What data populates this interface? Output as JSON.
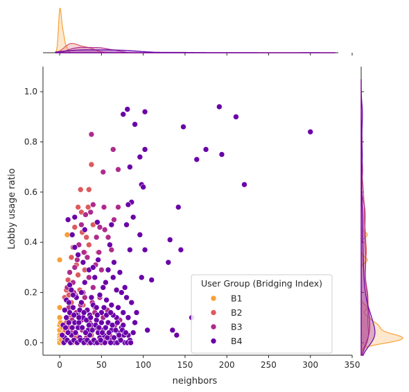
{
  "chart_data": {
    "type": "scatter",
    "title": "",
    "xlabel": "neighbors",
    "ylabel": "Lobby usage ratio",
    "xlim": [
      -20,
      350
    ],
    "ylim": [
      -0.05,
      1.1
    ],
    "xticks": [
      0,
      50,
      100,
      150,
      200,
      250,
      300,
      350
    ],
    "yticks": [
      0.0,
      0.2,
      0.4,
      0.6,
      0.8,
      1.0
    ],
    "grid": false,
    "legend": {
      "title": "User Group (Bridging Index)",
      "placement": "lower-right",
      "entries": [
        "B1",
        "B2",
        "B3",
        "B4"
      ]
    },
    "marginals": {
      "top": "kde of neighbors by group",
      "right": "kde of Lobby usage ratio by group"
    },
    "series": [
      {
        "name": "B1",
        "color": "#f7a137",
        "points": [
          [
            0,
            0.33
          ],
          [
            0,
            0.14
          ],
          [
            0,
            0.1
          ],
          [
            0,
            0.07
          ],
          [
            0,
            0.05
          ],
          [
            0,
            0.03
          ],
          [
            0,
            0.02
          ],
          [
            0,
            0.01
          ],
          [
            0,
            0.0
          ],
          [
            2,
            0.02
          ],
          [
            3,
            0.06
          ],
          [
            4,
            0.0
          ],
          [
            5,
            0.04
          ],
          [
            9,
            0.43
          ],
          [
            2,
            0.01
          ],
          [
            6,
            0.02
          ],
          [
            1,
            0.08
          ],
          [
            4,
            0.03
          ]
        ]
      },
      {
        "name": "B2",
        "color": "#dc5a5e",
        "points": [
          [
            12,
            0.21
          ],
          [
            14,
            0.16
          ],
          [
            18,
            0.46
          ],
          [
            22,
            0.54
          ],
          [
            25,
            0.61
          ],
          [
            38,
            0.71
          ],
          [
            35,
            0.61
          ],
          [
            34,
            0.54
          ],
          [
            32,
            0.42
          ],
          [
            30,
            0.36
          ],
          [
            8,
            0.21
          ],
          [
            10,
            0.13
          ],
          [
            12,
            0.1
          ],
          [
            16,
            0.06
          ],
          [
            20,
            0.03
          ],
          [
            6,
            0.18
          ],
          [
            10,
            0.25
          ],
          [
            14,
            0.34
          ],
          [
            26,
            0.52
          ],
          [
            40,
            0.47
          ],
          [
            22,
            0.27
          ],
          [
            28,
            0.15
          ],
          [
            18,
            0.02
          ],
          [
            15,
            0.0
          ],
          [
            12,
            0.09
          ],
          [
            9,
            0.01
          ],
          [
            7,
            0.05
          ],
          [
            24,
            0.21
          ],
          [
            30,
            0.29
          ],
          [
            20,
            0.31
          ],
          [
            16,
            0.38
          ],
          [
            27,
            0.44
          ],
          [
            35,
            0.39
          ],
          [
            46,
            0.36
          ],
          [
            42,
            0.14
          ],
          [
            38,
            0.03
          ],
          [
            11,
            0.19
          ],
          [
            19,
            0.12
          ],
          [
            8,
            0.08
          ],
          [
            13,
            0.0
          ]
        ]
      },
      {
        "name": "B3",
        "color": "#ae2b8d",
        "points": [
          [
            38,
            0.83
          ],
          [
            52,
            0.68
          ],
          [
            64,
            0.77
          ],
          [
            70,
            0.69
          ],
          [
            53,
            0.54
          ],
          [
            40,
            0.55
          ],
          [
            48,
            0.46
          ],
          [
            44,
            0.42
          ],
          [
            54,
            0.45
          ],
          [
            65,
            0.49
          ],
          [
            70,
            0.54
          ],
          [
            58,
            0.42
          ],
          [
            62,
            0.37
          ],
          [
            47,
            0.36
          ],
          [
            50,
            0.29
          ],
          [
            35,
            0.26
          ],
          [
            40,
            0.22
          ],
          [
            30,
            0.18
          ],
          [
            25,
            0.15
          ],
          [
            20,
            0.12
          ],
          [
            15,
            0.09
          ],
          [
            10,
            0.06
          ],
          [
            28,
            0.2
          ],
          [
            33,
            0.34
          ],
          [
            18,
            0.3
          ],
          [
            23,
            0.39
          ],
          [
            26,
            0.47
          ],
          [
            31,
            0.51
          ],
          [
            37,
            0.52
          ],
          [
            12,
            0.28
          ],
          [
            16,
            0.24
          ],
          [
            22,
            0.11
          ],
          [
            27,
            0.05
          ],
          [
            32,
            0.02
          ],
          [
            36,
            0.08
          ],
          [
            42,
            0.12
          ],
          [
            46,
            0.04
          ],
          [
            50,
            0.0
          ],
          [
            55,
            0.02
          ],
          [
            60,
            0.03
          ],
          [
            43,
            0.31
          ],
          [
            19,
            0.19
          ],
          [
            14,
            0.04
          ],
          [
            24,
            0.01
          ],
          [
            34,
            0.0
          ],
          [
            29,
            0.36
          ],
          [
            21,
            0.33
          ],
          [
            17,
            0.2
          ],
          [
            39,
            0.16
          ],
          [
            44,
            0.06
          ],
          [
            48,
            0.18
          ],
          [
            52,
            0.1
          ],
          [
            57,
            0.13
          ],
          [
            66,
            0.07
          ],
          [
            72,
            0.09
          ],
          [
            11,
            0.14
          ],
          [
            9,
            0.22
          ],
          [
            26,
            0.09
          ]
        ]
      },
      {
        "name": "B4",
        "color": "#6a00a8",
        "points": [
          [
            81,
            0.93
          ],
          [
            102,
            0.92
          ],
          [
            76,
            0.91
          ],
          [
            191,
            0.94
          ],
          [
            211,
            0.9
          ],
          [
            300,
            0.84
          ],
          [
            148,
            0.86
          ],
          [
            90,
            0.87
          ],
          [
            102,
            0.77
          ],
          [
            175,
            0.77
          ],
          [
            164,
            0.73
          ],
          [
            194,
            0.75
          ],
          [
            96,
            0.74
          ],
          [
            84,
            0.7
          ],
          [
            98,
            0.63
          ],
          [
            100,
            0.62
          ],
          [
            221,
            0.63
          ],
          [
            142,
            0.54
          ],
          [
            86,
            0.56
          ],
          [
            82,
            0.55
          ],
          [
            88,
            0.5
          ],
          [
            80,
            0.47
          ],
          [
            84,
            0.37
          ],
          [
            96,
            0.43
          ],
          [
            102,
            0.37
          ],
          [
            132,
            0.41
          ],
          [
            145,
            0.37
          ],
          [
            130,
            0.32
          ],
          [
            110,
            0.25
          ],
          [
            98,
            0.26
          ],
          [
            60,
            0.39
          ],
          [
            65,
            0.32
          ],
          [
            72,
            0.28
          ],
          [
            78,
            0.22
          ],
          [
            55,
            0.24
          ],
          [
            48,
            0.19
          ],
          [
            62,
            0.15
          ],
          [
            68,
            0.1
          ],
          [
            74,
            0.06
          ],
          [
            58,
            0.08
          ],
          [
            50,
            0.12
          ],
          [
            44,
            0.09
          ],
          [
            38,
            0.07
          ],
          [
            33,
            0.13
          ],
          [
            28,
            0.1
          ],
          [
            22,
            0.06
          ],
          [
            18,
            0.08
          ],
          [
            14,
            0.03
          ],
          [
            10,
            0.04
          ],
          [
            6,
            0.02
          ],
          [
            4,
            0.07
          ],
          [
            8,
            0.1
          ],
          [
            12,
            0.12
          ],
          [
            16,
            0.14
          ],
          [
            20,
            0.11
          ],
          [
            24,
            0.02
          ],
          [
            30,
            0.01
          ],
          [
            36,
            0.03
          ],
          [
            42,
            0.0
          ],
          [
            48,
            0.02
          ],
          [
            54,
            0.0
          ],
          [
            60,
            0.01
          ],
          [
            66,
            0.0
          ],
          [
            72,
            0.02
          ],
          [
            78,
            0.0
          ],
          [
            84,
            0.01
          ],
          [
            105,
            0.05
          ],
          [
            135,
            0.05
          ],
          [
            140,
            0.03
          ],
          [
            158,
            0.1
          ],
          [
            90,
            0.08
          ],
          [
            86,
            0.16
          ],
          [
            92,
            0.12
          ],
          [
            80,
            0.18
          ],
          [
            74,
            0.2
          ],
          [
            68,
            0.21
          ],
          [
            56,
            0.17
          ],
          [
            52,
            0.05
          ],
          [
            46,
            0.04
          ],
          [
            40,
            0.15
          ],
          [
            34,
            0.05
          ],
          [
            26,
            0.16
          ],
          [
            20,
            0.18
          ],
          [
            10,
            0.49
          ],
          [
            15,
            0.43
          ],
          [
            18,
            0.38
          ],
          [
            22,
            0.35
          ],
          [
            28,
            0.32
          ],
          [
            35,
            0.29
          ],
          [
            42,
            0.26
          ],
          [
            30,
            0.24
          ],
          [
            26,
            0.2
          ],
          [
            16,
            0.19
          ],
          [
            12,
            0.23
          ],
          [
            8,
            0.17
          ],
          [
            14,
            0.21
          ],
          [
            40,
            0.3
          ],
          [
            46,
            0.33
          ],
          [
            52,
            0.22
          ],
          [
            58,
            0.29
          ],
          [
            64,
            0.26
          ],
          [
            70,
            0.14
          ],
          [
            76,
            0.12
          ],
          [
            82,
            0.1
          ],
          [
            88,
            0.04
          ],
          [
            62,
            0.05
          ],
          [
            56,
            0.11
          ],
          [
            44,
            0.14
          ],
          [
            38,
            0.18
          ],
          [
            32,
            0.09
          ],
          [
            36,
            0.11
          ],
          [
            24,
            0.13
          ],
          [
            50,
            0.08
          ],
          [
            64,
            0.11
          ],
          [
            70,
            0.04
          ],
          [
            76,
            0.07
          ],
          [
            82,
            0.03
          ],
          [
            5,
            0.0
          ],
          [
            9,
            0.01
          ],
          [
            13,
            0.0
          ],
          [
            17,
            0.01
          ],
          [
            21,
            0.0
          ],
          [
            25,
            0.01
          ],
          [
            29,
            0.0
          ],
          [
            33,
            0.01
          ],
          [
            37,
            0.0
          ],
          [
            41,
            0.01
          ],
          [
            45,
            0.0
          ],
          [
            49,
            0.01
          ],
          [
            53,
            0.03
          ],
          [
            57,
            0.02
          ],
          [
            61,
            0.0
          ],
          [
            65,
            0.02
          ],
          [
            69,
            0.0
          ],
          [
            73,
            0.01
          ],
          [
            77,
            0.03
          ],
          [
            81,
            0.0
          ],
          [
            85,
            0.0
          ],
          [
            3,
            0.03
          ],
          [
            7,
            0.06
          ],
          [
            11,
            0.08
          ],
          [
            15,
            0.06
          ],
          [
            19,
            0.04
          ],
          [
            23,
            0.08
          ],
          [
            27,
            0.06
          ],
          [
            31,
            0.04
          ],
          [
            35,
            0.07
          ],
          [
            39,
            0.05
          ],
          [
            43,
            0.07
          ],
          [
            47,
            0.06
          ],
          [
            51,
            0.04
          ],
          [
            55,
            0.06
          ],
          [
            59,
            0.04
          ],
          [
            63,
            0.07
          ],
          [
            67,
            0.05
          ],
          [
            71,
            0.03
          ],
          [
            75,
            0.05
          ],
          [
            79,
            0.04
          ],
          [
            6,
            0.13
          ],
          [
            11,
            0.16
          ],
          [
            17,
            0.11
          ],
          [
            23,
            0.1
          ],
          [
            29,
            0.12
          ],
          [
            37,
            0.1
          ],
          [
            45,
            0.11
          ],
          [
            53,
            0.14
          ],
          [
            61,
            0.12
          ],
          [
            69,
            0.08
          ],
          [
            18,
            0.5
          ],
          [
            30,
            0.45
          ],
          [
            45,
            0.48
          ],
          [
            62,
            0.47
          ]
        ]
      }
    ]
  }
}
